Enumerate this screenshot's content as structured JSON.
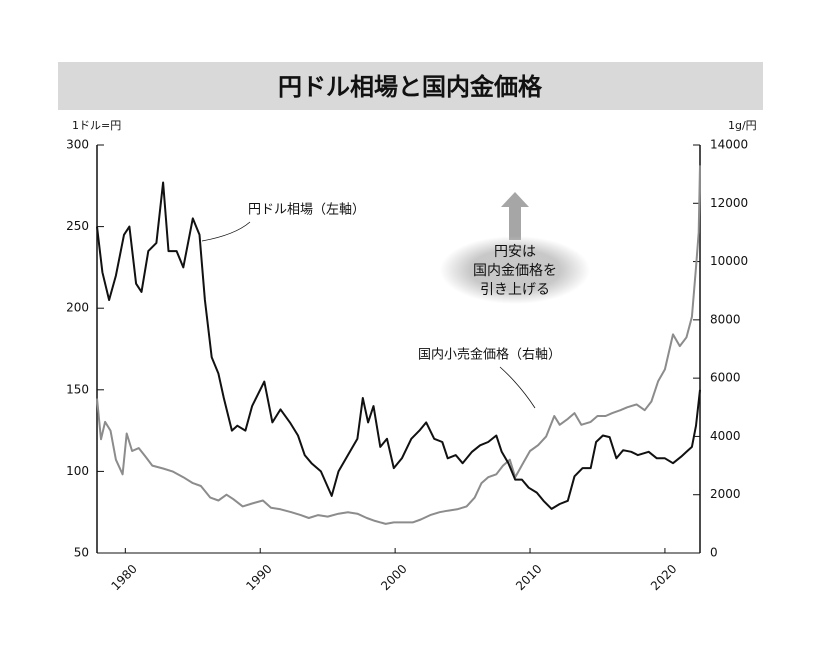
{
  "chart_data": {
    "type": "line",
    "title": "円ドル相場と国内金価格",
    "y_label": "1ドル=円",
    "y2_label": "1g/円",
    "callout": [
      "円安は",
      "国内金価格を",
      "引き上げる"
    ],
    "xlim": [
      1977.9,
      2022.6
    ],
    "xticks": [
      1980,
      1990,
      2000,
      2010,
      2020
    ],
    "ylim": [
      50,
      300
    ],
    "yticks": [
      50,
      100,
      150,
      200,
      250,
      300
    ],
    "y2lim": [
      0,
      14000
    ],
    "y2ticks": [
      0,
      2000,
      4000,
      6000,
      8000,
      10000,
      12000,
      14000
    ],
    "series": [
      {
        "name": "円ドル相場（左軸）",
        "color": "#111111",
        "axis": "y",
        "x": [
          1977.9,
          1978.3,
          1978.8,
          1979.3,
          1979.9,
          1980.3,
          1980.8,
          1981.2,
          1981.7,
          1982.3,
          1982.8,
          1983.2,
          1983.8,
          1984.3,
          1985.0,
          1985.5,
          1985.9,
          1986.4,
          1986.9,
          1987.3,
          1987.9,
          1988.3,
          1988.9,
          1989.4,
          1990.3,
          1990.9,
          1991.5,
          1992.2,
          1992.8,
          1993.3,
          1993.8,
          1994.5,
          1995.3,
          1995.8,
          1996.5,
          1997.2,
          1997.6,
          1998.0,
          1998.4,
          1998.9,
          1999.4,
          1999.9,
          2000.5,
          2001.2,
          2001.8,
          2002.3,
          2002.9,
          2003.5,
          2003.9,
          2004.5,
          2005.0,
          2005.7,
          2006.3,
          2006.9,
          2007.5,
          2007.9,
          2008.4,
          2008.9,
          2009.4,
          2009.9,
          2010.5,
          2011.0,
          2011.6,
          2012.2,
          2012.8,
          2013.3,
          2013.9,
          2014.5,
          2014.9,
          2015.4,
          2015.9,
          2016.4,
          2016.9,
          2017.5,
          2018.0,
          2018.8,
          2019.4,
          2020.0,
          2020.6,
          2021.2,
          2021.6,
          2022.0,
          2022.3,
          2022.6
        ],
        "values": [
          250,
          222,
          205,
          220,
          245,
          250,
          215,
          210,
          235,
          240,
          277,
          235,
          235,
          225,
          255,
          245,
          205,
          170,
          160,
          145,
          125,
          128,
          125,
          140,
          155,
          130,
          138,
          130,
          122,
          110,
          105,
          100,
          85,
          100,
          110,
          120,
          145,
          130,
          140,
          115,
          120,
          102,
          108,
          120,
          125,
          130,
          120,
          118,
          108,
          110,
          105,
          112,
          116,
          118,
          122,
          112,
          105,
          95,
          95,
          90,
          87,
          82,
          77,
          80,
          82,
          97,
          102,
          102,
          118,
          122,
          121,
          108,
          113,
          112,
          110,
          112,
          108,
          108,
          105,
          109,
          112,
          115,
          128,
          150
        ]
      },
      {
        "name": "国内小売金価格（右軸）",
        "color": "#8c8c8c",
        "axis": "y2",
        "x": [
          1977.9,
          1978.2,
          1978.5,
          1978.9,
          1979.3,
          1979.8,
          1980.1,
          1980.5,
          1981.0,
          1981.5,
          1982.0,
          1982.8,
          1983.5,
          1984.3,
          1985.0,
          1985.6,
          1986.3,
          1986.9,
          1987.5,
          1988.0,
          1988.7,
          1989.4,
          1990.2,
          1990.8,
          1991.5,
          1992.3,
          1993.0,
          1993.6,
          1994.3,
          1995.0,
          1995.8,
          1996.5,
          1997.2,
          1997.9,
          1998.5,
          1999.3,
          1999.9,
          2000.5,
          2001.3,
          2001.9,
          2002.6,
          2003.3,
          2003.9,
          2004.6,
          2005.3,
          2005.9,
          2006.4,
          2006.9,
          2007.5,
          2008.0,
          2008.5,
          2008.9,
          2009.5,
          2010.0,
          2010.6,
          2011.2,
          2011.8,
          2012.2,
          2012.8,
          2013.3,
          2013.8,
          2014.5,
          2015.0,
          2015.6,
          2016.1,
          2016.7,
          2017.2,
          2017.9,
          2018.5,
          2019.0,
          2019.5,
          2020.0,
          2020.6,
          2021.1,
          2021.6,
          2022.0,
          2022.3,
          2022.5,
          2022.6
        ],
        "values": [
          5300,
          3900,
          4500,
          4200,
          3200,
          2700,
          4100,
          3500,
          3600,
          3300,
          3000,
          2900,
          2800,
          2600,
          2400,
          2300,
          1900,
          1800,
          2000,
          1850,
          1600,
          1700,
          1800,
          1550,
          1500,
          1400,
          1300,
          1200,
          1300,
          1250,
          1350,
          1400,
          1350,
          1200,
          1100,
          1000,
          1050,
          1050,
          1050,
          1150,
          1300,
          1400,
          1450,
          1500,
          1600,
          1900,
          2400,
          2600,
          2700,
          3000,
          3200,
          2600,
          3100,
          3500,
          3700,
          4000,
          4700,
          4400,
          4600,
          4800,
          4400,
          4500,
          4700,
          4700,
          4800,
          4900,
          5000,
          5100,
          4900,
          5200,
          5900,
          6300,
          7500,
          7100,
          7400,
          8100,
          9800,
          11000,
          13300
        ]
      }
    ]
  }
}
